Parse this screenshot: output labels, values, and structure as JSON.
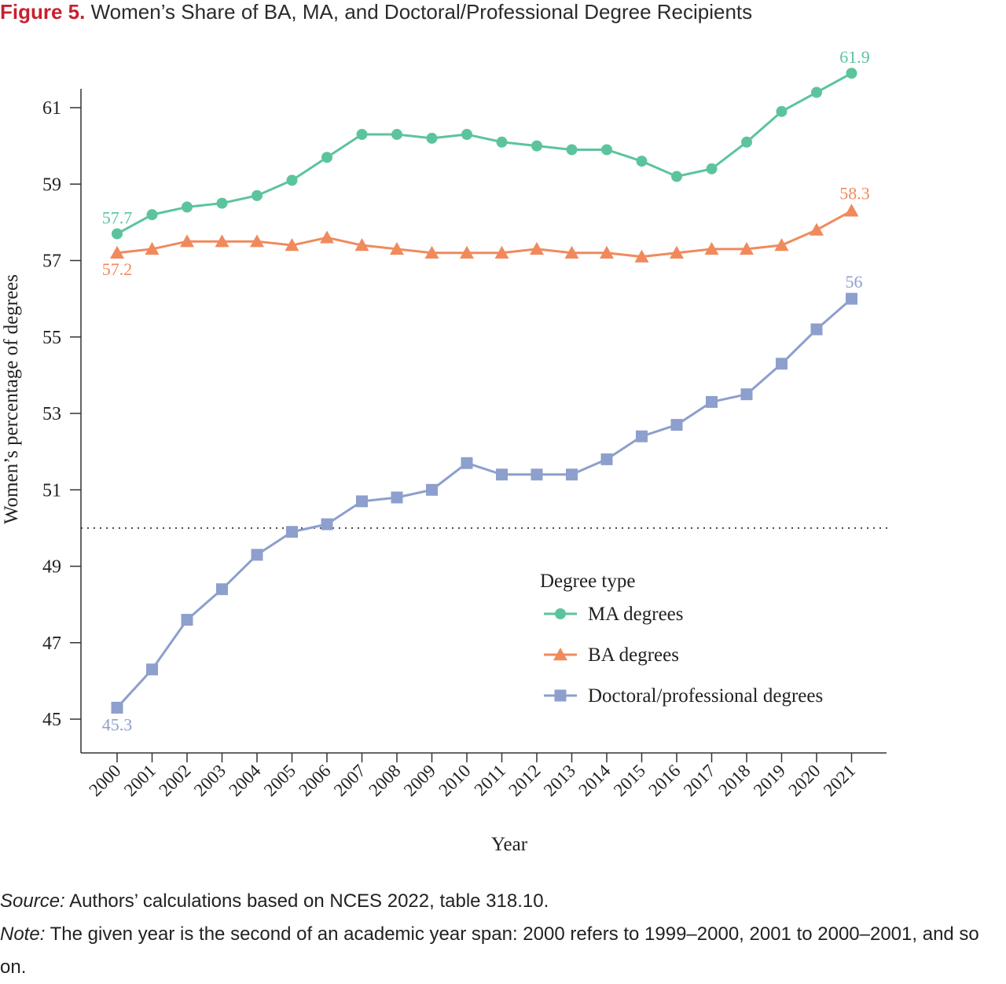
{
  "header": {
    "figure_label": "Figure 5.",
    "title": "Women’s Share of BA, MA, and Doctoral/Professional Degree Recipients"
  },
  "chart_data": {
    "type": "line",
    "xlabel": "Year",
    "ylabel": "Women’s percentage of degrees",
    "x": [
      2000,
      2001,
      2002,
      2003,
      2004,
      2005,
      2006,
      2007,
      2008,
      2009,
      2010,
      2011,
      2012,
      2013,
      2014,
      2015,
      2016,
      2017,
      2018,
      2019,
      2020,
      2021
    ],
    "ylim": [
      44.2,
      61.5
    ],
    "yticks": [
      45,
      47,
      49,
      51,
      53,
      55,
      57,
      59,
      61
    ],
    "reference_line": 50,
    "legend_title": "Degree type",
    "legend_position": "right, mid-lower",
    "grid": false,
    "series": [
      {
        "name": "MA degrees",
        "color": "#5cc49c",
        "marker": "circle",
        "values": [
          57.7,
          58.2,
          58.4,
          58.5,
          58.7,
          59.1,
          59.7,
          60.3,
          60.3,
          60.2,
          60.3,
          60.1,
          60.0,
          59.9,
          59.9,
          59.6,
          59.2,
          59.4,
          60.1,
          60.9,
          61.4,
          61.9
        ],
        "labels": {
          "first": "57.7",
          "last": "61.9"
        }
      },
      {
        "name": "BA degrees",
        "color": "#f08a5d",
        "marker": "triangle",
        "values": [
          57.2,
          57.3,
          57.5,
          57.5,
          57.5,
          57.4,
          57.6,
          57.4,
          57.3,
          57.2,
          57.2,
          57.2,
          57.3,
          57.2,
          57.2,
          57.1,
          57.2,
          57.3,
          57.3,
          57.4,
          57.8,
          58.3
        ],
        "labels": {
          "first": "57.2",
          "last": "58.3"
        }
      },
      {
        "name": "Doctoral/professional degrees",
        "color": "#8d9fcc",
        "marker": "square",
        "values": [
          45.3,
          46.3,
          47.6,
          48.4,
          49.3,
          49.9,
          50.1,
          50.7,
          50.8,
          51.0,
          51.7,
          51.4,
          51.4,
          51.4,
          51.8,
          52.4,
          52.7,
          53.3,
          53.5,
          54.3,
          55.2,
          56.0
        ],
        "labels": {
          "first": "45.3",
          "last": "56"
        }
      }
    ]
  },
  "footer": {
    "source_label": "Source:",
    "source_text": " Authors’ calculations based on NCES 2022, table 318.10.",
    "note_label": "Note:",
    "note_text": " The given year is the second of an academic year span: 2000 refers to 1999–2000, 2001 to 2000–2001, and so on."
  }
}
